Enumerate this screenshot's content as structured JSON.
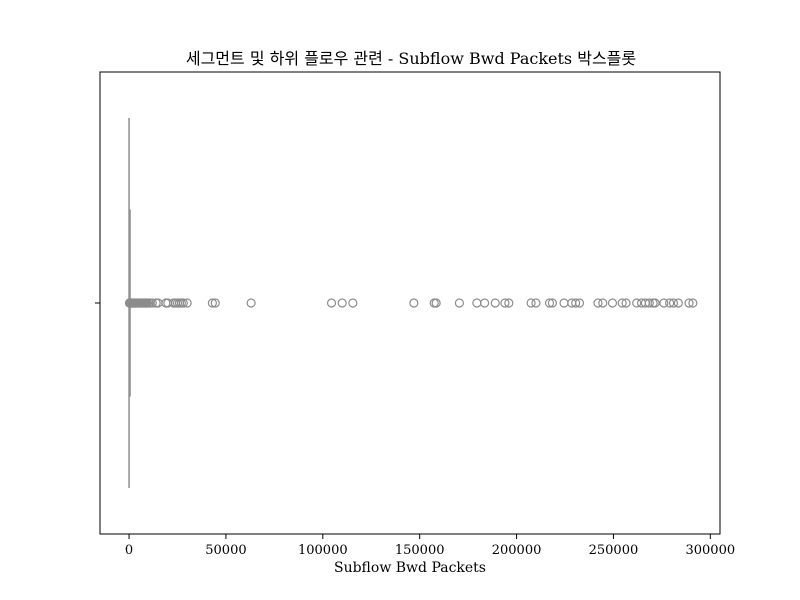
{
  "chart_data": {
    "type": "boxplot",
    "orientation": "horizontal",
    "title": "세그먼트 및 하위 플로우 관련 - Subflow Bwd Packets 박스플롯",
    "xlabel": "Subflow Bwd Packets",
    "ylabel": "",
    "xlim": [
      -15000,
      305000
    ],
    "xticks": [
      0,
      50000,
      100000,
      150000,
      200000,
      250000,
      300000
    ],
    "xtick_labels": [
      "0",
      "50000",
      "100000",
      "150000",
      "200000",
      "250000",
      "300000"
    ],
    "grid": false,
    "legend": null,
    "box": {
      "q1": 0,
      "median": 0,
      "q3": 2,
      "whisker_low": 0,
      "whisker_high": 5
    },
    "outliers": [
      200,
      400,
      600,
      800,
      1000,
      1300,
      1600,
      2000,
      2400,
      2800,
      3200,
      3600,
      4000,
      4500,
      5000,
      5500,
      6000,
      6500,
      7000,
      7500,
      8000,
      8500,
      9000,
      9500,
      10500,
      12000,
      14000,
      15000,
      19000,
      20000,
      23000,
      24000,
      25000,
      26000,
      27000,
      28000,
      30000,
      43000,
      44500,
      63000,
      104500,
      110000,
      115500,
      147000,
      157500,
      158500,
      170500,
      179500,
      183500,
      189000,
      194000,
      196000,
      207500,
      210000,
      217000,
      218500,
      224500,
      228500,
      230500,
      232500,
      242000,
      244500,
      249500,
      254500,
      256500,
      262000,
      264500,
      266500,
      268500,
      270500,
      271500,
      276000,
      279000,
      281000,
      283500,
      289000,
      291000
    ],
    "colors": {
      "box": "#8c8c8c",
      "outlier_edge": "#8c8c8c",
      "axes": "#000000"
    }
  }
}
